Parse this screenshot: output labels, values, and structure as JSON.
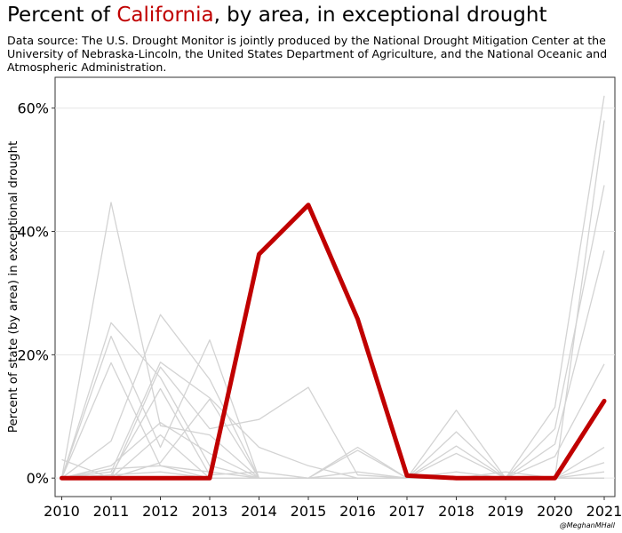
{
  "title": {
    "prefix": "Percent of ",
    "highlight": "California",
    "suffix": ", by area, in exceptional drought"
  },
  "subtitle": "Data source: The U.S. Drought Monitor is jointly produced by the National Drought Mitigation Center at the University of Nebraska-Lincoln, the United States Department of Agriculture, and the National Oceanic and Atmospheric Administration.",
  "credit": "@MeghanMHall",
  "colors": {
    "highlight": "#c00000",
    "background_lines": "#d3d3d3",
    "grid": "#e6e6e6"
  },
  "chart_data": {
    "type": "line",
    "title": "Percent of California, by area, in exceptional drought",
    "xlabel": "",
    "ylabel": "Percent of state (by area) in exceptional drought",
    "x": [
      2010,
      2011,
      2012,
      2013,
      2014,
      2015,
      2016,
      2017,
      2018,
      2019,
      2020,
      2021
    ],
    "x_ticks": [
      "2010",
      "2011",
      "2012",
      "2013",
      "2014",
      "2015",
      "2016",
      "2017",
      "2018",
      "2019",
      "2020",
      "2021"
    ],
    "y_ticks": [
      0,
      20,
      40,
      60
    ],
    "y_tick_labels": [
      "0%",
      "20%",
      "40%",
      "60%"
    ],
    "ylim": [
      -3,
      65
    ],
    "grid": true,
    "highlight_series": {
      "name": "California",
      "values": [
        0,
        0,
        0,
        0,
        36.3,
        44.3,
        25.8,
        0.4,
        0,
        0,
        0,
        12.5
      ]
    },
    "background_series": [
      {
        "values": [
          0,
          44.7,
          8.5,
          7.0,
          0,
          0,
          0,
          0,
          0,
          0,
          0,
          58.0
        ]
      },
      {
        "values": [
          0,
          25.2,
          16.3,
          2.0,
          0,
          0,
          0,
          0,
          0,
          0,
          11.5,
          62.0
        ]
      },
      {
        "values": [
          0,
          23.0,
          5.0,
          22.4,
          0,
          0,
          0,
          0,
          0,
          0,
          8.0,
          47.5
        ]
      },
      {
        "values": [
          0,
          18.7,
          2.0,
          0,
          0,
          0,
          0,
          0,
          0,
          0,
          5.5,
          36.9
        ]
      },
      {
        "values": [
          0,
          6.0,
          26.5,
          16.0,
          0,
          0,
          0,
          0,
          0,
          0,
          3.5,
          18.5
        ]
      },
      {
        "values": [
          0,
          1.0,
          18.8,
          13.0,
          5.0,
          2.0,
          0,
          0,
          11.0,
          0,
          0,
          5.0
        ]
      },
      {
        "values": [
          0,
          0,
          18.0,
          8.0,
          9.5,
          14.7,
          0.5,
          0,
          7.5,
          0,
          0,
          0
        ]
      },
      {
        "values": [
          0,
          0.5,
          14.5,
          0.5,
          1.0,
          0,
          5.0,
          0,
          5.2,
          0,
          0,
          0
        ]
      },
      {
        "values": [
          0,
          2.0,
          9.0,
          4.0,
          0,
          0,
          0,
          0,
          4.0,
          0,
          0,
          2.5
        ]
      },
      {
        "values": [
          0,
          0,
          7.0,
          0,
          0,
          0,
          0,
          0,
          0,
          0,
          0,
          0
        ]
      },
      {
        "values": [
          3.0,
          0,
          2.5,
          12.8,
          0,
          0,
          4.5,
          0,
          0,
          1.0,
          0,
          1.0
        ]
      },
      {
        "values": [
          0,
          1.5,
          2.0,
          1.0,
          0,
          0,
          0,
          0,
          0,
          0,
          0,
          0
        ]
      },
      {
        "values": [
          0,
          0.5,
          1.0,
          0,
          0,
          0,
          1.0,
          0,
          1.0,
          0,
          0,
          0
        ]
      }
    ]
  }
}
